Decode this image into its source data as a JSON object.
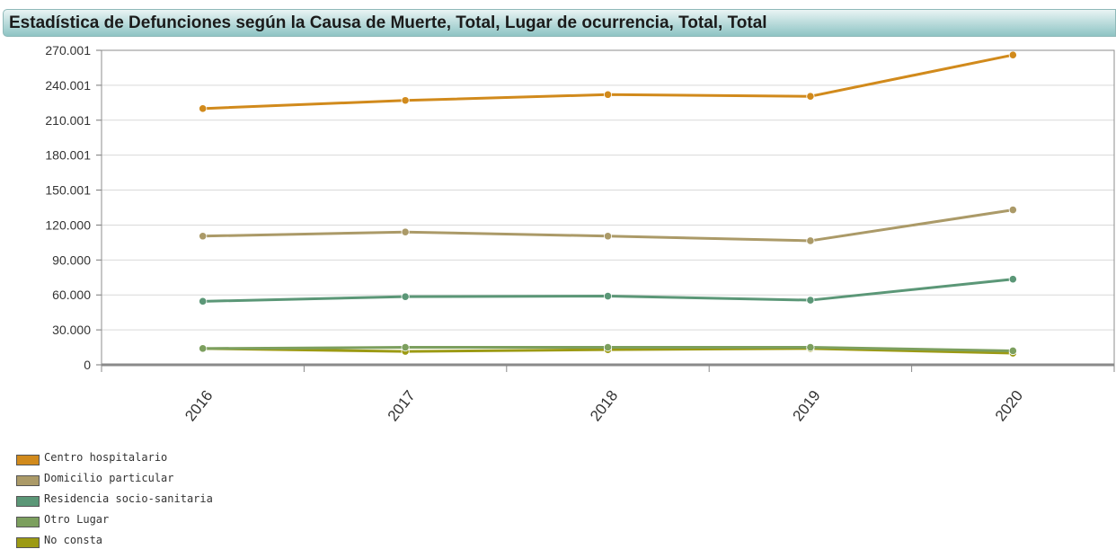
{
  "header": {
    "title": "Estadística de Defunciones según la Causa de Muerte, Total, Lugar de ocurrencia, Total, Total"
  },
  "chart_data": {
    "type": "line",
    "title": "Estadística de Defunciones según la Causa de Muerte, Total, Lugar de ocurrencia, Total, Total",
    "xlabel": "",
    "ylabel": "",
    "categories": [
      "2016",
      "2017",
      "2018",
      "2019",
      "2020"
    ],
    "y_ticks": [
      "0",
      "30.000",
      "60.000",
      "90.000",
      "120.000",
      "150.001",
      "180.001",
      "210.001",
      "240.001",
      "270.001"
    ],
    "ylim": [
      0,
      270001
    ],
    "grid": true,
    "legend_position": "bottom-left",
    "series": [
      {
        "name": "Centro hospitalario",
        "color": "#d18a1c",
        "values": [
          220000,
          227000,
          232000,
          230500,
          266000
        ]
      },
      {
        "name": "Domicilio particular",
        "color": "#ab9a68",
        "values": [
          110500,
          114000,
          110500,
          106500,
          133000
        ]
      },
      {
        "name": "Residencia socio-sanitaria",
        "color": "#5b9777",
        "values": [
          54500,
          58500,
          59000,
          55500,
          73500
        ]
      },
      {
        "name": "Otro Lugar",
        "color": "#7c9f5e",
        "values": [
          14000,
          15000,
          15000,
          15000,
          12000
        ]
      },
      {
        "name": "No consta",
        "color": "#9c9a14",
        "values": [
          14000,
          11500,
          13000,
          14000,
          10000
        ]
      }
    ]
  }
}
